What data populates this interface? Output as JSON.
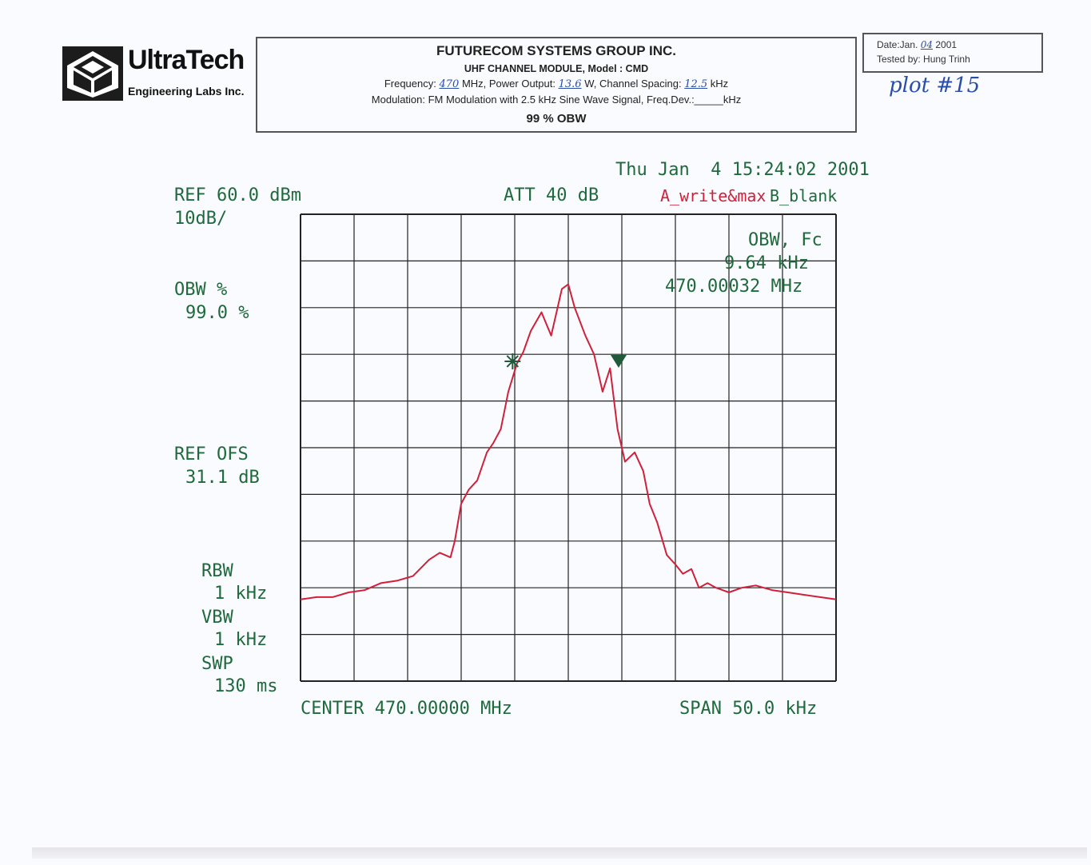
{
  "header": {
    "company": "FUTURECOM SYSTEMS GROUP INC.",
    "model_line": "UHF CHANNEL MODULE, Model : CMD",
    "freq_label": "Frequency:",
    "freq_value": "470",
    "freq_unit": "MHz, Power Output:",
    "power_value": "13.6",
    "spacing_label": "W, Channel Spacing:",
    "spacing_value": "12.5",
    "spacing_unit": "kHz",
    "modulation_line": "Modulation: FM Modulation with 2.5 kHz Sine Wave Signal, Freq.Dev.:_____kHz",
    "test_name": "99 % OBW"
  },
  "logo": {
    "name": "UltraTech",
    "subtitle": "Engineering Labs Inc."
  },
  "datebox": {
    "date_label": "Date:Jan.",
    "date_value": "04",
    "year": "2001",
    "tested_label": "Tested by:",
    "tester": "Hung Trinh"
  },
  "plot_label": "plot #15",
  "analyzer": {
    "timestamp": "Thu Jan  4 15:24:02 2001",
    "ref_level": "REF 60.0 dBm",
    "scale": "10dB/",
    "att": "ATT 40 dB",
    "trace_a": "A_write&max",
    "trace_b": "B_blank",
    "obw_pct_label": "OBW %",
    "obw_pct_value": "99.0 %",
    "ref_ofs_label": "REF OFS",
    "ref_ofs_value": "31.1 dB",
    "rbw_label": "RBW",
    "rbw_value": "1 kHz",
    "vbw_label": "VBW",
    "vbw_value": "1 kHz",
    "swp_label": "SWP",
    "swp_value": "130 ms",
    "center": "CENTER 470.00000 MHz",
    "span": "SPAN 50.0 kHz",
    "obw_fc_label": "OBW, Fc",
    "obw_value": "9.64 kHz",
    "fc_value": "470.00032 MHz"
  },
  "colors": {
    "trace": "#d0203a",
    "text": "#1f6a3c",
    "grid": "#222222",
    "marker": "#1f5a3a"
  },
  "chart_data": {
    "type": "line",
    "title": "",
    "xlabel": "",
    "ylabel": "",
    "xlim": [
      -25,
      25
    ],
    "ylim": [
      -40,
      60
    ],
    "x_divisions": 10,
    "y_divisions": 10,
    "grid": true,
    "series": [
      {
        "x": [
          -25,
          -23.5,
          -22,
          -20.5,
          -19,
          -17.5,
          -16,
          -14.5,
          -13,
          -12,
          -11,
          -10.6,
          -10,
          -9.3,
          -8.5,
          -7.6,
          -7,
          -6.3,
          -5.6,
          -4.8,
          -4.2,
          -3.5,
          -2.5,
          -1.6,
          -0.6,
          0,
          0.6,
          1.6,
          2.4,
          3.2,
          3.9,
          4.6,
          5.3,
          6.2,
          7,
          7.6,
          8.3,
          9.2,
          10,
          10.7,
          11.5,
          12.2,
          13,
          13.8,
          15,
          16.2,
          17.5,
          19,
          20.5,
          22,
          23.5,
          25
        ],
        "values": [
          -22.5,
          -22,
          -22,
          -21,
          -20.5,
          -19,
          -18.5,
          -17.5,
          -14,
          -12.5,
          -13.5,
          -10,
          -2,
          1,
          3,
          9,
          11,
          14,
          22,
          28,
          30.5,
          35,
          39,
          34,
          44,
          45,
          40,
          34,
          30,
          22,
          27,
          14,
          7,
          9,
          5,
          -2,
          -6,
          -13,
          -15,
          -17,
          -16,
          -20,
          -19,
          -20,
          -21,
          -20,
          -19.5,
          -20.5,
          -21,
          -21.5,
          -22,
          -22.5
        ]
      }
    ],
    "markers": [
      {
        "type": "star",
        "x": -5.2,
        "value": 28.5
      },
      {
        "type": "triangle",
        "x": 4.7,
        "value": 28.5
      }
    ],
    "annotations": [
      "OBW, Fc",
      "9.64 kHz",
      "470.00032 MHz"
    ]
  }
}
